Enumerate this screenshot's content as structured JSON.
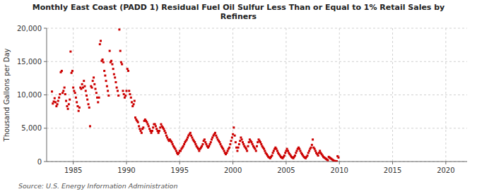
{
  "chart_data": {
    "type": "scatter",
    "title": "Monthly East Coast (PADD 1) Residual Fuel Oil Sulfur Less Than or Equal to 1% Retail Sales by\nRefiners",
    "ylabel": "Thousand Gallons per Day",
    "annotations": [
      "Source: U.S. Energy Information Administration"
    ],
    "color": "#cc0000",
    "marker": "square",
    "grid": true,
    "xlim": [
      1982.5,
      2022
    ],
    "ylim": [
      0,
      20000
    ],
    "xticks": [
      1985,
      1990,
      1995,
      2000,
      2005,
      2010,
      2015,
      2020
    ],
    "yticks": [
      0,
      {
        "value": 5000,
        "label": "5,000"
      },
      {
        "value": 10000,
        "label": "10,000"
      },
      {
        "value": 15000,
        "label": "15,000"
      },
      {
        "value": 20000,
        "label": "20,000"
      }
    ],
    "x": [
      1983.0,
      1983.08,
      1983.17,
      1983.25,
      1983.33,
      1983.42,
      1983.5,
      1983.58,
      1983.67,
      1983.75,
      1983.83,
      1983.92,
      1984.0,
      1984.08,
      1984.17,
      1984.25,
      1984.33,
      1984.42,
      1984.5,
      1984.58,
      1984.67,
      1984.75,
      1984.83,
      1984.92,
      1985.0,
      1985.08,
      1985.17,
      1985.25,
      1985.33,
      1985.42,
      1985.5,
      1985.58,
      1985.67,
      1985.75,
      1985.83,
      1985.92,
      1986.0,
      1986.08,
      1986.17,
      1986.25,
      1986.33,
      1986.42,
      1986.5,
      1986.58,
      1986.67,
      1986.75,
      1986.83,
      1986.92,
      1987.0,
      1987.08,
      1987.17,
      1987.25,
      1987.33,
      1987.42,
      1987.5,
      1987.58,
      1987.67,
      1987.75,
      1987.83,
      1987.92,
      1988.0,
      1988.08,
      1988.17,
      1988.25,
      1988.33,
      1988.42,
      1988.5,
      1988.58,
      1988.67,
      1988.75,
      1988.83,
      1988.92,
      1989.0,
      1989.08,
      1989.17,
      1989.25,
      1989.33,
      1989.42,
      1989.5,
      1989.58,
      1989.67,
      1989.75,
      1989.83,
      1989.92,
      1990.0,
      1990.08,
      1990.17,
      1990.25,
      1990.33,
      1990.42,
      1990.5,
      1990.58,
      1990.67,
      1990.75,
      1990.83,
      1990.92,
      1991.0,
      1991.08,
      1991.17,
      1991.25,
      1991.33,
      1991.42,
      1991.5,
      1991.58,
      1991.67,
      1991.75,
      1991.83,
      1991.92,
      1992.0,
      1992.08,
      1992.17,
      1992.25,
      1992.33,
      1992.42,
      1992.5,
      1992.58,
      1992.67,
      1992.75,
      1992.83,
      1992.92,
      1993.0,
      1993.08,
      1993.17,
      1993.25,
      1993.33,
      1993.42,
      1993.5,
      1993.58,
      1993.67,
      1993.75,
      1993.83,
      1993.92,
      1994.0,
      1994.08,
      1994.17,
      1994.25,
      1994.33,
      1994.42,
      1994.5,
      1994.58,
      1994.67,
      1994.75,
      1994.83,
      1994.92,
      1995.0,
      1995.08,
      1995.17,
      1995.25,
      1995.33,
      1995.42,
      1995.5,
      1995.58,
      1995.67,
      1995.75,
      1995.83,
      1995.92,
      1996.0,
      1996.08,
      1996.17,
      1996.25,
      1996.33,
      1996.42,
      1996.5,
      1996.58,
      1996.67,
      1996.75,
      1996.83,
      1996.92,
      1997.0,
      1997.08,
      1997.17,
      1997.25,
      1997.33,
      1997.42,
      1997.5,
      1997.58,
      1997.67,
      1997.75,
      1997.83,
      1997.92,
      1998.0,
      1998.08,
      1998.17,
      1998.25,
      1998.33,
      1998.42,
      1998.5,
      1998.58,
      1998.67,
      1998.75,
      1998.83,
      1998.92,
      1999.0,
      1999.08,
      1999.17,
      1999.25,
      1999.33,
      1999.42,
      1999.5,
      1999.58,
      1999.67,
      1999.75,
      1999.83,
      1999.92,
      2000.0,
      2000.08,
      2000.17,
      2000.25,
      2000.33,
      2000.42,
      2000.5,
      2000.58,
      2000.67,
      2000.75,
      2000.83,
      2000.92,
      2001.0,
      2001.08,
      2001.17,
      2001.25,
      2001.33,
      2001.42,
      2001.5,
      2001.58,
      2001.67,
      2001.75,
      2001.83,
      2001.92,
      2002.0,
      2002.08,
      2002.17,
      2002.25,
      2002.33,
      2002.42,
      2002.5,
      2002.58,
      2002.67,
      2002.75,
      2002.83,
      2002.92,
      2003.0,
      2003.08,
      2003.17,
      2003.25,
      2003.33,
      2003.42,
      2003.5,
      2003.58,
      2003.67,
      2003.75,
      2003.83,
      2003.92,
      2004.0,
      2004.08,
      2004.17,
      2004.25,
      2004.33,
      2004.42,
      2004.5,
      2004.58,
      2004.67,
      2004.75,
      2004.83,
      2004.92,
      2005.0,
      2005.08,
      2005.17,
      2005.25,
      2005.33,
      2005.42,
      2005.5,
      2005.58,
      2005.67,
      2005.75,
      2005.83,
      2005.92,
      2006.0,
      2006.08,
      2006.17,
      2006.25,
      2006.33,
      2006.42,
      2006.5,
      2006.58,
      2006.67,
      2006.75,
      2006.83,
      2006.92,
      2007.0,
      2007.08,
      2007.17,
      2007.25,
      2007.33,
      2007.42,
      2007.5,
      2007.58,
      2007.67,
      2007.75,
      2007.83,
      2007.92,
      2008.0,
      2008.08,
      2008.17,
      2008.25,
      2008.33,
      2008.42,
      2008.5,
      2008.58,
      2008.67,
      2008.75,
      2008.83,
      2008.92,
      2009.0,
      2009.08,
      2009.17,
      2009.25,
      2009.33,
      2009.42,
      2009.5,
      2009.58,
      2009.67,
      2009.75,
      2009.83,
      2009.92
    ],
    "values": [
      10500,
      8700,
      9000,
      9500,
      8900,
      8300,
      8600,
      9100,
      9600,
      10100,
      13400,
      13600,
      10300,
      10600,
      11100,
      10100,
      9100,
      8300,
      7900,
      8600,
      9300,
      16500,
      13300,
      13600,
      11100,
      10600,
      10300,
      9600,
      8900,
      8300,
      7600,
      8100,
      11100,
      10900,
      11600,
      11100,
      12100,
      11300,
      10600,
      9900,
      9300,
      8600,
      8100,
      5300,
      11300,
      11100,
      12100,
      12600,
      11600,
      10900,
      10300,
      9600,
      8900,
      9600,
      17600,
      18100,
      15100,
      15300,
      14900,
      13600,
      12900,
      12100,
      11300,
      10600,
      9900,
      16600,
      14900,
      15100,
      14600,
      13900,
      13100,
      12600,
      11900,
      11100,
      10600,
      9900,
      19800,
      16600,
      14900,
      14600,
      10600,
      10100,
      9600,
      9900,
      10600,
      13900,
      13600,
      10600,
      10100,
      9600,
      8900,
      8300,
      8600,
      9100,
      6600,
      6300,
      6100,
      5900,
      5300,
      4900,
      4600,
      4300,
      4900,
      5100,
      6100,
      6300,
      6100,
      5900,
      5600,
      5300,
      4900,
      4600,
      4300,
      4600,
      5100,
      5600,
      5600,
      5300,
      4900,
      4600,
      4300,
      4600,
      5100,
      5600,
      5300,
      5100,
      4900,
      4600,
      4300,
      3900,
      3600,
      3300,
      3100,
      3300,
      3100,
      2900,
      2600,
      2300,
      2100,
      1900,
      1600,
      1300,
      1100,
      1300,
      1600,
      1600,
      1900,
      2100,
      2300,
      2600,
      2900,
      3100,
      3300,
      3600,
      3900,
      4100,
      4300,
      3900,
      3600,
      3300,
      3100,
      2900,
      2600,
      2300,
      2100,
      1900,
      1600,
      1900,
      2100,
      2300,
      2600,
      3100,
      3300,
      2900,
      2600,
      2300,
      2100,
      2300,
      2600,
      2900,
      3300,
      3600,
      3900,
      4100,
      4300,
      3900,
      3600,
      3300,
      3100,
      2900,
      2600,
      2300,
      2100,
      1900,
      1600,
      1300,
      1100,
      1300,
      1600,
      1900,
      2100,
      2600,
      3100,
      3600,
      4100,
      5100,
      3900,
      2900,
      2100,
      1600,
      2100,
      2600,
      3100,
      3600,
      3300,
      2900,
      2600,
      2300,
      2100,
      1900,
      1600,
      2300,
      2900,
      3300,
      3100,
      2900,
      2600,
      2300,
      2100,
      1900,
      1600,
      2300,
      2900,
      3300,
      3100,
      2900,
      2600,
      2300,
      2100,
      1900,
      1600,
      1300,
      1100,
      900,
      700,
      600,
      500,
      700,
      900,
      1300,
      1600,
      1900,
      2100,
      1900,
      1600,
      1300,
      1100,
      900,
      700,
      600,
      500,
      700,
      900,
      1300,
      1600,
      1900,
      1600,
      1300,
      1100,
      900,
      700,
      600,
      500,
      700,
      900,
      1300,
      1600,
      1900,
      2100,
      1900,
      1600,
      1300,
      1100,
      900,
      700,
      600,
      500,
      700,
      900,
      1300,
      1600,
      1900,
      2100,
      2500,
      3300,
      2100,
      1900,
      1600,
      1300,
      1100,
      900,
      1300,
      1600,
      1300,
      1100,
      900,
      700,
      600,
      500,
      400,
      300,
      200,
      700,
      600,
      500,
      400,
      300,
      200,
      100,
      80,
      60,
      50,
      800,
      600
    ]
  }
}
